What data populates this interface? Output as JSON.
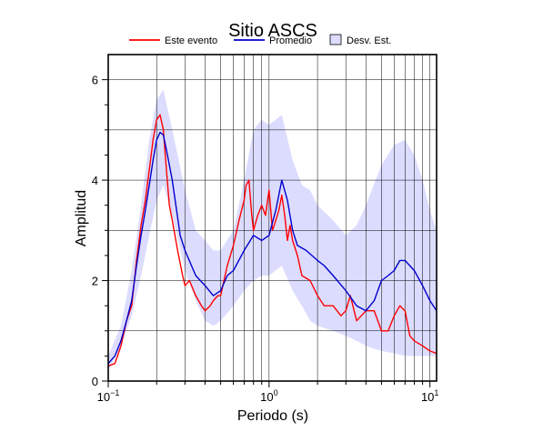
{
  "chart_data": {
    "type": "line",
    "title": "Sitio ASCS",
    "xlabel": "Periodo (s)",
    "ylabel": "Amplitud",
    "x_scale": "log",
    "xlim": [
      0.1,
      11
    ],
    "ylim": [
      0,
      6.5
    ],
    "grid": true,
    "legend_position": "top",
    "x_ticks": [
      {
        "value": 0.1,
        "base": "10",
        "exp": "−1"
      },
      {
        "value": 1,
        "base": "10",
        "exp": "0"
      },
      {
        "value": 10,
        "base": "10",
        "exp": "1"
      }
    ],
    "y_ticks": [
      0,
      2,
      4,
      6
    ],
    "legend": [
      {
        "label": "Este evento",
        "kind": "line",
        "color": "#ff0000"
      },
      {
        "label": "Promedio",
        "kind": "line",
        "color": "#0000cc"
      },
      {
        "label": "Desv. Est.",
        "kind": "box",
        "color": "#dcdcff"
      }
    ],
    "band": {
      "name": "Desv. Est.",
      "color": "#dcdcff",
      "x": [
        0.1,
        0.12,
        0.14,
        0.16,
        0.18,
        0.2,
        0.22,
        0.25,
        0.3,
        0.35,
        0.4,
        0.45,
        0.5,
        0.6,
        0.7,
        0.8,
        0.9,
        1.0,
        1.2,
        1.4,
        1.6,
        1.8,
        2.0,
        2.5,
        3.0,
        3.5,
        4.0,
        5.0,
        6.0,
        7.0,
        8.0,
        9.0,
        10.0,
        11.0
      ],
      "upper": [
        0.5,
        1.1,
        2.2,
        3.5,
        4.8,
        5.6,
        5.8,
        5.0,
        3.8,
        3.0,
        2.8,
        2.6,
        2.6,
        3.0,
        4.0,
        5.0,
        5.2,
        5.1,
        5.3,
        4.4,
        3.9,
        3.8,
        3.5,
        3.2,
        2.9,
        3.1,
        3.5,
        4.3,
        4.7,
        4.8,
        4.5,
        4.0,
        3.4,
        3.0
      ],
      "lower": [
        0.2,
        0.7,
        1.3,
        2.1,
        2.9,
        3.6,
        3.9,
        3.3,
        2.2,
        1.6,
        1.2,
        1.1,
        1.2,
        1.5,
        1.8,
        2.0,
        2.1,
        2.1,
        2.3,
        1.8,
        1.5,
        1.2,
        1.1,
        1.0,
        0.9,
        0.8,
        0.7,
        0.6,
        0.55,
        0.5,
        0.5,
        0.5,
        0.5,
        0.5
      ]
    },
    "series": [
      {
        "name": "Este evento",
        "color": "#ff0000",
        "x": [
          0.1,
          0.11,
          0.12,
          0.13,
          0.14,
          0.15,
          0.16,
          0.17,
          0.18,
          0.19,
          0.2,
          0.21,
          0.22,
          0.23,
          0.24,
          0.25,
          0.27,
          0.29,
          0.3,
          0.32,
          0.35,
          0.38,
          0.4,
          0.43,
          0.45,
          0.48,
          0.5,
          0.55,
          0.6,
          0.65,
          0.7,
          0.72,
          0.75,
          0.78,
          0.8,
          0.85,
          0.9,
          0.95,
          1.0,
          1.05,
          1.1,
          1.15,
          1.2,
          1.25,
          1.3,
          1.35,
          1.4,
          1.5,
          1.6,
          1.8,
          2.0,
          2.2,
          2.5,
          2.8,
          3.0,
          3.2,
          3.5,
          4.0,
          4.5,
          5.0,
          5.5,
          6.0,
          6.5,
          7.0,
          7.5,
          8.0,
          9.0,
          10.0,
          11.0
        ],
        "y": [
          0.3,
          0.35,
          0.7,
          1.2,
          1.5,
          2.4,
          3.1,
          3.6,
          4.2,
          4.8,
          5.2,
          5.3,
          5.0,
          4.2,
          3.5,
          3.2,
          2.6,
          2.1,
          1.9,
          2.0,
          1.7,
          1.5,
          1.4,
          1.5,
          1.6,
          1.7,
          1.7,
          2.3,
          2.7,
          3.2,
          3.6,
          3.9,
          4.0,
          3.3,
          3.0,
          3.3,
          3.5,
          3.3,
          3.8,
          3.0,
          3.2,
          3.4,
          3.7,
          3.3,
          2.8,
          3.1,
          2.8,
          2.5,
          2.1,
          2.0,
          1.7,
          1.5,
          1.5,
          1.3,
          1.4,
          1.7,
          1.2,
          1.4,
          1.4,
          1.0,
          1.0,
          1.3,
          1.5,
          1.4,
          0.9,
          0.8,
          0.7,
          0.6,
          0.55
        ]
      },
      {
        "name": "Promedio",
        "color": "#0000cc",
        "x": [
          0.1,
          0.11,
          0.12,
          0.13,
          0.14,
          0.15,
          0.16,
          0.17,
          0.18,
          0.19,
          0.2,
          0.21,
          0.22,
          0.23,
          0.25,
          0.28,
          0.3,
          0.35,
          0.4,
          0.45,
          0.5,
          0.55,
          0.6,
          0.7,
          0.8,
          0.9,
          1.0,
          1.1,
          1.2,
          1.3,
          1.4,
          1.5,
          1.7,
          2.0,
          2.2,
          2.5,
          3.0,
          3.5,
          4.0,
          4.5,
          5.0,
          5.5,
          6.0,
          6.5,
          7.0,
          8.0,
          9.0,
          10.0,
          11.0
        ],
        "y": [
          0.35,
          0.5,
          0.8,
          1.2,
          1.6,
          2.3,
          2.9,
          3.4,
          3.9,
          4.4,
          4.8,
          4.95,
          4.9,
          4.6,
          4.0,
          2.9,
          2.6,
          2.1,
          1.9,
          1.7,
          1.8,
          2.1,
          2.2,
          2.6,
          2.9,
          2.8,
          2.9,
          3.4,
          4.0,
          3.6,
          3.0,
          2.7,
          2.6,
          2.4,
          2.3,
          2.1,
          1.8,
          1.5,
          1.4,
          1.6,
          2.0,
          2.1,
          2.2,
          2.4,
          2.4,
          2.2,
          1.9,
          1.6,
          1.4
        ]
      }
    ]
  }
}
